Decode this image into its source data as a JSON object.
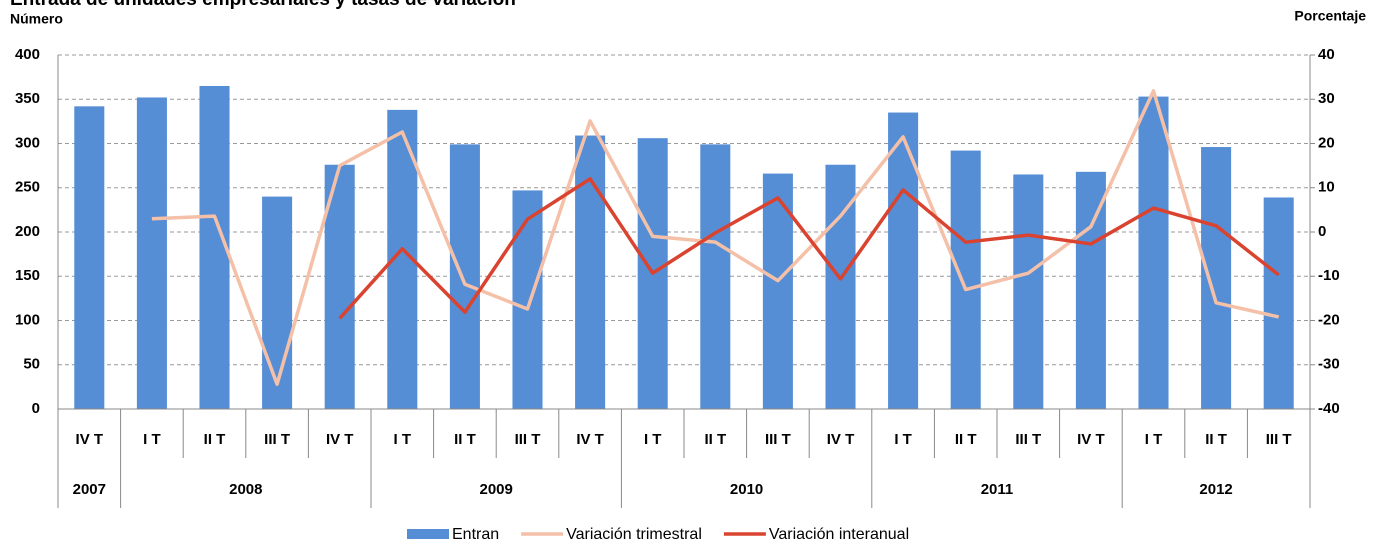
{
  "chart_data": {
    "type": "bar_line",
    "title": "Entrada de unidades empresariales y tasas de variación",
    "y_label": "Número",
    "y2_label": "Porcentaje",
    "categories": [
      "IV T",
      "I T",
      "II T",
      "III T",
      "IV T",
      "I T",
      "II T",
      "III T",
      "IV T",
      "I T",
      "II T",
      "III T",
      "IV T",
      "I T",
      "II T",
      "III T",
      "IV T",
      "I T",
      "II T",
      "III T"
    ],
    "years": [
      "2007",
      "2008",
      null,
      null,
      null,
      "2009",
      null,
      null,
      null,
      "2010",
      null,
      null,
      null,
      "2011",
      null,
      null,
      null,
      "2012",
      null,
      null
    ],
    "series": [
      {
        "name": "Entran",
        "type": "bar",
        "color": "#558ed5",
        "values": [
          342,
          352,
          365,
          240,
          276,
          338,
          299,
          247,
          309,
          306,
          299,
          266,
          276,
          335,
          292,
          265,
          268,
          353,
          296,
          239
        ]
      },
      {
        "name": "Variación trimestral",
        "type": "line",
        "axis": "y2",
        "color": "#f4c0a8",
        "values": [
          null,
          3.0,
          3.6,
          -34.4,
          15.0,
          22.6,
          -11.8,
          -17.4,
          25.1,
          -1.0,
          -2.3,
          -11.0,
          3.6,
          21.5,
          -13.0,
          -9.3,
          1.2,
          31.9,
          -16.0,
          -19.2
        ]
      },
      {
        "name": "Variación interanual",
        "type": "line",
        "axis": "y2",
        "color": "#d9432f",
        "values": [
          null,
          null,
          null,
          null,
          -19.5,
          -3.8,
          -18.1,
          2.9,
          12.0,
          -9.3,
          -0.2,
          7.7,
          -10.6,
          9.5,
          -2.3,
          -0.7,
          -2.7,
          5.4,
          1.4,
          -9.7
        ]
      }
    ],
    "ylim": [
      0,
      400
    ],
    "yticks": [
      0,
      50,
      100,
      150,
      200,
      250,
      300,
      350,
      400
    ],
    "y2lim": [
      -40,
      40
    ],
    "y2ticks": [
      -40,
      -30,
      -20,
      -10,
      0,
      10,
      20,
      30,
      40
    ],
    "grid": true,
    "legend": "bottom"
  }
}
